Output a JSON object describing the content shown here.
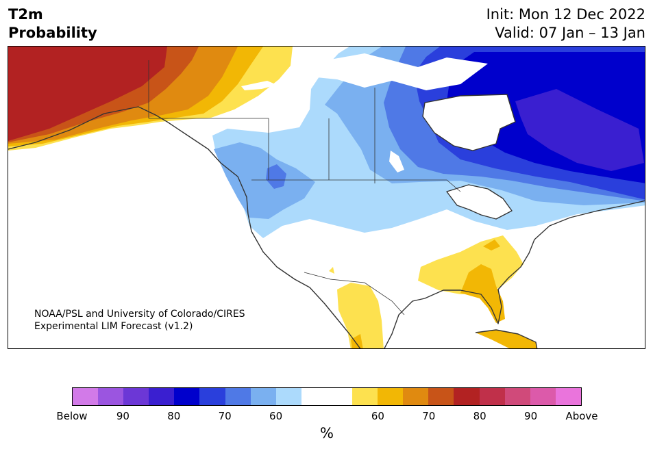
{
  "header": {
    "title_line1": "T2m",
    "title_line2": "Probability",
    "init_line": "Init: Mon 12 Dec 2022",
    "valid_line": "Valid: 07 Jan – 13 Jan"
  },
  "map": {
    "credit_line1": "NOAA/PSL and University of Colorado/CIRES",
    "credit_line2": "Experimental LIM Forecast (v1.2)"
  },
  "colorbar": {
    "colors": [
      "#d27ae8",
      "#9b55e0",
      "#6c37d6",
      "#3a1fd0",
      "#0000cc",
      "#2a3fdc",
      "#4f79e6",
      "#7ab0f0",
      "#acdafc",
      "#ffffff",
      "#ffffff",
      "#fde14f",
      "#f2b705",
      "#e08a10",
      "#c85418",
      "#b22222",
      "#c0304a",
      "#d04a7a",
      "#dc5aaa",
      "#ea74dc"
    ],
    "tick_labels": [
      "Below",
      "90",
      "80",
      "70",
      "60",
      "60",
      "70",
      "80",
      "90",
      "Above"
    ],
    "unit_label": "%"
  },
  "colors": {
    "above_40": "#fde14f",
    "above_50": "#f2b705",
    "above_60": "#e08a10",
    "above_70": "#c85418",
    "above_80": "#b22222",
    "below_40": "#acdafc",
    "below_50": "#7ab0f0",
    "below_60": "#4f79e6",
    "below_70": "#2a3fdc",
    "below_80": "#0000cc",
    "below_90": "#3a1fd0"
  }
}
